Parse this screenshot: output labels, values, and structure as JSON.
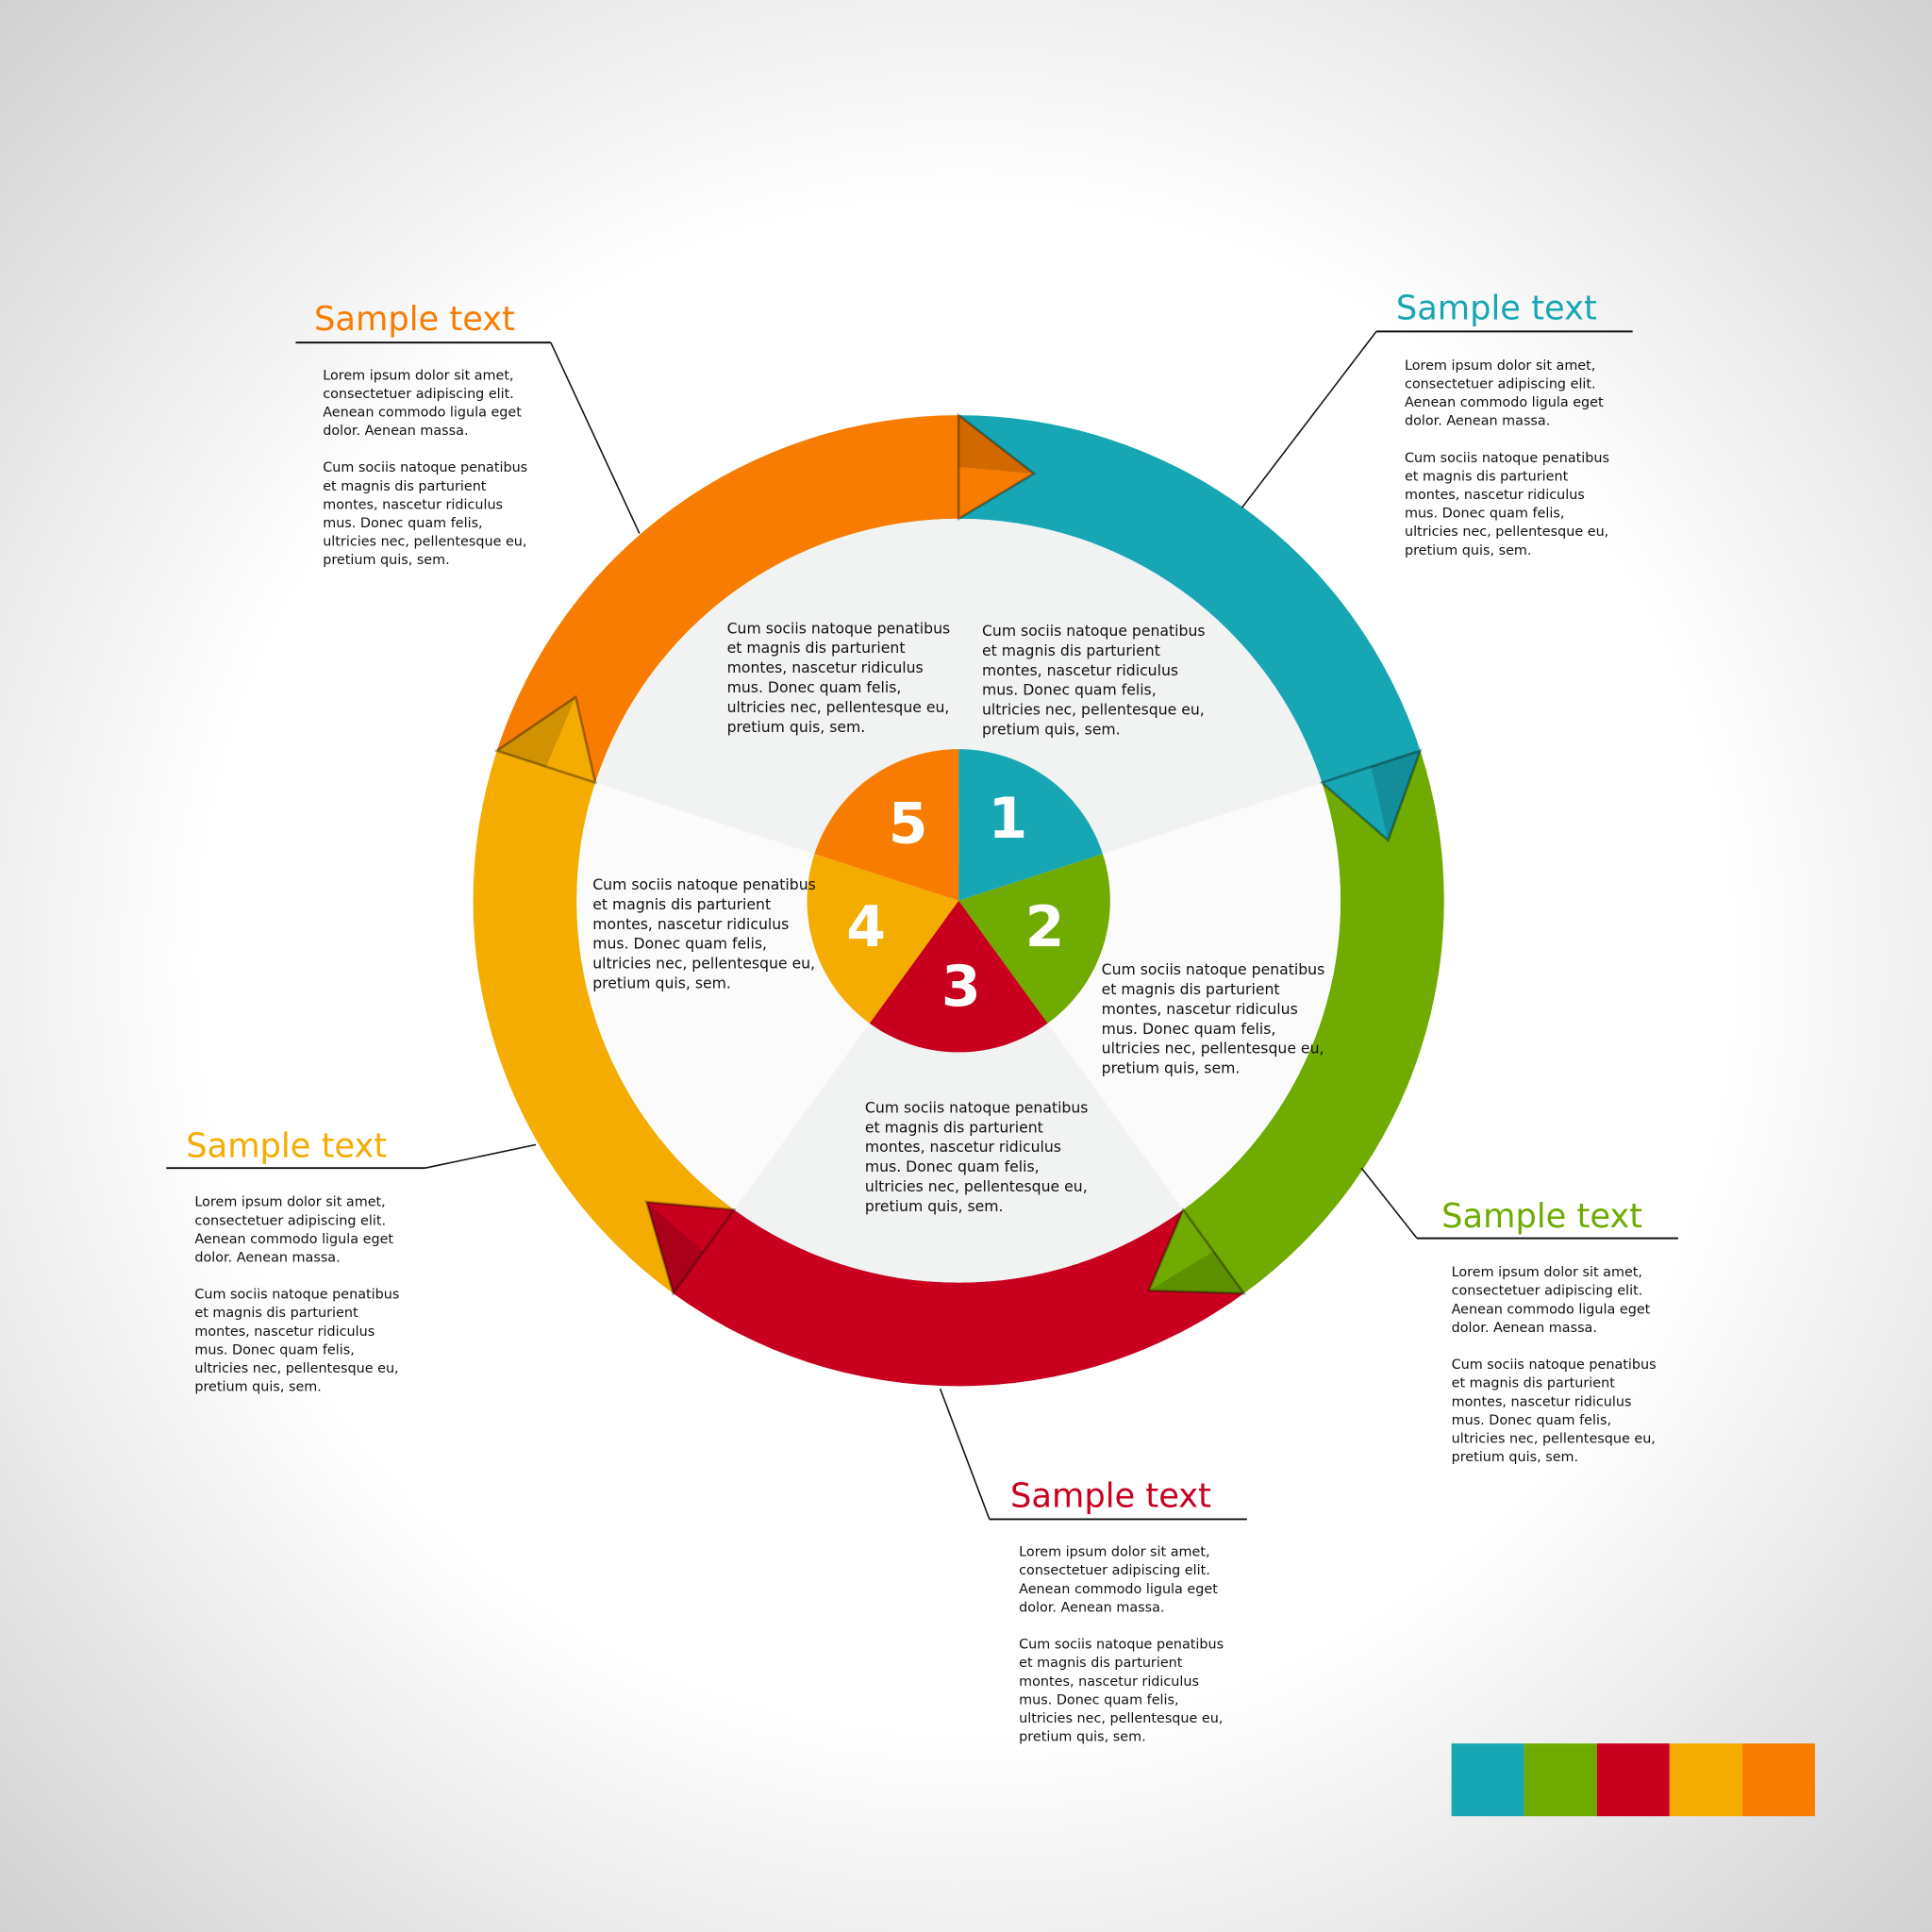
{
  "colors": {
    "teal": "#17a6b4",
    "green": "#6fab00",
    "red": "#c8001e",
    "yellow": "#f5ac00",
    "orange": "#f77c00"
  },
  "segments": [
    {
      "number": "1",
      "color": "#17a6b4",
      "text": [
        "Cum sociis natoque penatibus",
        "et magnis dis parturient",
        "montes, nascetur ridiculus",
        "mus. Donec quam felis,",
        "ultricies nec, pellentesque eu,",
        "pretium quis, sem."
      ]
    },
    {
      "number": "2",
      "color": "#6fab00",
      "text": [
        "Cum sociis natoque penatibus",
        "et magnis dis parturient",
        "montes, nascetur ridiculus",
        "mus. Donec quam felis,",
        "ultricies nec, pellentesque eu,",
        "pretium quis, sem."
      ]
    },
    {
      "number": "3",
      "color": "#c8001e",
      "text": [
        "Cum sociis natoque penatibus",
        "et magnis dis parturient",
        "montes, nascetur ridiculus",
        "mus. Donec quam felis,",
        "ultricies nec, pellentesque eu,",
        "pretium quis, sem."
      ]
    },
    {
      "number": "4",
      "color": "#f5ac00",
      "text": [
        "Cum sociis natoque penatibus",
        "et magnis dis parturient",
        "montes, nascetur ridiculus",
        "mus. Donec quam felis,",
        "ultricies nec, pellentesque eu,",
        "pretium quis, sem."
      ]
    },
    {
      "number": "5",
      "color": "#f77c00",
      "text": [
        "Cum sociis natoque penatibus",
        "et magnis dis parturient",
        "montes, nascetur ridiculus",
        "mus. Donec quam felis,",
        "ultricies nec, pellentesque eu,",
        "pretium quis, sem."
      ]
    }
  ],
  "callouts": [
    {
      "title": "Sample text",
      "color": "#17a6b4",
      "paragraph1": [
        "Lorem ipsum dolor sit amet,",
        "consectetuer adipiscing elit.",
        "Aenean commodo ligula eget",
        "dolor. Aenean massa."
      ],
      "paragraph2": [
        " Cum sociis natoque penatibus",
        "et magnis dis parturient",
        "montes, nascetur ridiculus",
        "mus. Donec quam felis,",
        "ultricies nec, pellentesque eu,",
        "pretium quis, sem."
      ]
    },
    {
      "title": "Sample text",
      "color": "#6fab00",
      "paragraph1": [
        "Lorem ipsum dolor sit amet,",
        "consectetuer adipiscing elit.",
        "Aenean commodo ligula eget",
        "dolor. Aenean massa."
      ],
      "paragraph2": [
        " Cum sociis natoque penatibus",
        "et magnis dis parturient",
        "montes, nascetur ridiculus",
        "mus. Donec quam felis,",
        "ultricies nec, pellentesque eu,",
        "pretium quis, sem."
      ]
    },
    {
      "title": "Sample text",
      "color": "#c8001e",
      "paragraph1": [
        "Lorem ipsum dolor sit amet,",
        "consectetuer adipiscing elit.",
        "Aenean commodo ligula eget",
        "dolor. Aenean massa."
      ],
      "paragraph2": [
        " Cum sociis natoque penatibus",
        "et magnis dis parturient",
        "montes, nascetur ridiculus",
        "mus. Donec quam felis,",
        "ultricies nec, pellentesque eu,",
        "pretium quis, sem."
      ]
    },
    {
      "title": "Sample text",
      "color": "#f5ac00",
      "paragraph1": [
        "Lorem ipsum dolor sit amet,",
        "consectetuer adipiscing elit.",
        "Aenean commodo ligula eget",
        "dolor. Aenean massa."
      ],
      "paragraph2": [
        " Cum sociis natoque penatibus",
        "et magnis dis parturient",
        "montes, nascetur ridiculus",
        "mus. Donec quam felis,",
        "ultricies nec, pellentesque eu,",
        "pretium quis, sem."
      ]
    },
    {
      "title": "Sample text",
      "color": "#f77c00",
      "paragraph1": [
        "Lorem ipsum dolor sit amet,",
        "consectetuer adipiscing elit.",
        "Aenean commodo ligula eget",
        "dolor. Aenean massa."
      ],
      "paragraph2": [
        " Cum sociis natoque penatibus",
        "et magnis dis parturient",
        "montes, nascetur ridiculus",
        "mus. Donec quam felis,",
        "ultricies nec, pellentesque eu,",
        "pretium quis, sem."
      ]
    }
  ],
  "palette": [
    "#17a6b4",
    "#6fab00",
    "#c8001e",
    "#f5ac00",
    "#f77c00"
  ]
}
